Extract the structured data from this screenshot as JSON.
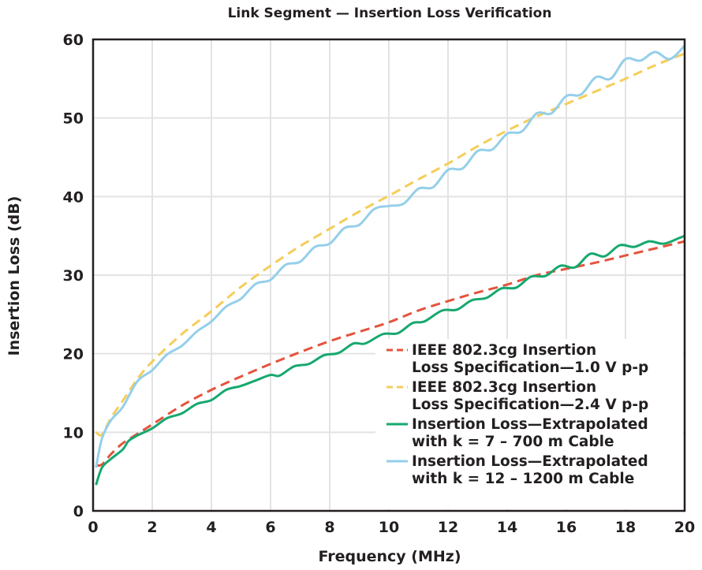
{
  "chart_data": {
    "type": "line",
    "title": "Link Segment — Insertion Loss Verification",
    "xlabel": "Frequency (MHz)",
    "ylabel": "Insertion Loss (dB)",
    "xlim": [
      0,
      20
    ],
    "ylim": [
      0,
      60
    ],
    "xticks": [
      0,
      2,
      4,
      6,
      8,
      10,
      12,
      14,
      16,
      18,
      20
    ],
    "yticks": [
      0,
      10,
      20,
      30,
      40,
      50,
      60
    ],
    "grid": true,
    "legend_position": "bottom-right",
    "series": [
      {
        "name": "IEEE 802.3cg Insertion Loss Specification—1.0 V p-p",
        "name_lines": [
          "IEEE 802.3cg Insertion",
          "Loss Specification—1.0 V p-p"
        ],
        "color": "#e5533d",
        "style": "dashed",
        "x": [
          0.1,
          0.3,
          0.6,
          1,
          1.5,
          2,
          3,
          4,
          5,
          6,
          7,
          8,
          9,
          10,
          11,
          12,
          13,
          14,
          15,
          16,
          17,
          18,
          19,
          20
        ],
        "y": [
          5.8,
          5.9,
          7.2,
          8.6,
          9.8,
          11,
          13.4,
          15.4,
          17.1,
          18.7,
          20.2,
          21.6,
          22.8,
          24,
          25.5,
          26.7,
          27.8,
          28.8,
          30,
          30.8,
          31.6,
          32.5,
          33.4,
          34.3
        ]
      },
      {
        "name": "IEEE 802.3cg Insertion Loss Specification—2.4 V p-p",
        "name_lines": [
          "IEEE 802.3cg Insertion",
          "Loss Specification—2.4 V p-p"
        ],
        "color": "#f5cd5a",
        "style": "dashed",
        "x": [
          0.1,
          0.3,
          0.6,
          1,
          1.5,
          2,
          3,
          4,
          5,
          6,
          7,
          8,
          9,
          10,
          11,
          12,
          13,
          14,
          15,
          16,
          17,
          18,
          19,
          20
        ],
        "y": [
          10,
          9.7,
          11.8,
          14,
          16.8,
          19,
          22.5,
          25.4,
          28.5,
          31.2,
          33.7,
          35.9,
          38.1,
          40.1,
          42.2,
          44.2,
          46.4,
          48.4,
          50.2,
          51.8,
          53.4,
          55,
          56.7,
          58.2
        ]
      },
      {
        "name": "Insertion Loss—Extrapolated with k = 7 – 700 m Cable",
        "name_lines": [
          "Insertion Loss—Extrapolated",
          "with k = 7 – 700 m Cable"
        ],
        "color": "#16a86e",
        "style": "solid",
        "x": [
          0.1,
          0.3,
          0.6,
          1,
          1.2,
          1.5,
          2,
          2.5,
          3,
          3.5,
          4,
          4.5,
          5,
          5.5,
          6,
          6.3,
          6.8,
          7.3,
          7.8,
          8.3,
          8.8,
          9.2,
          9.8,
          10.3,
          10.8,
          11.2,
          11.8,
          12.3,
          12.8,
          13.3,
          13.8,
          14.3,
          14.8,
          15.3,
          15.8,
          16.3,
          16.8,
          17.3,
          17.8,
          18.3,
          18.8,
          19.3,
          19.8,
          20
        ],
        "y": [
          3.3,
          5.5,
          6.6,
          7.8,
          8.9,
          9.6,
          10.5,
          11.8,
          12.4,
          13.6,
          14.1,
          15.4,
          15.9,
          16.6,
          17.3,
          17.2,
          18.4,
          18.7,
          19.8,
          20.1,
          21.3,
          21.3,
          22.5,
          22.6,
          23.9,
          24.1,
          25.5,
          25.6,
          26.8,
          27.1,
          28.3,
          28.4,
          29.8,
          29.9,
          31.2,
          31.0,
          32.7,
          32.4,
          33.8,
          33.6,
          34.3,
          34.0,
          34.7,
          35.0
        ]
      },
      {
        "name": "Insertion Loss—Extrapolated with k = 12 – 1200 m Cable",
        "name_lines": [
          "Insertion Loss—Extrapolated",
          "with k = 12 – 1200 m Cable"
        ],
        "color": "#95cfe9",
        "style": "solid",
        "x": [
          0.1,
          0.3,
          0.6,
          1,
          1.5,
          2,
          2.5,
          3,
          3.5,
          4,
          4.5,
          5,
          5.5,
          6,
          6.5,
          7,
          7.5,
          8,
          8.5,
          9,
          9.5,
          10,
          10.5,
          11,
          11.5,
          12,
          12.5,
          13,
          13.5,
          14,
          14.5,
          15,
          15.5,
          16,
          16.5,
          17,
          17.5,
          18,
          18.5,
          19,
          19.5,
          20
        ],
        "y": [
          5.5,
          9.2,
          11.5,
          13.2,
          16.5,
          17.9,
          19.9,
          21.0,
          22.8,
          24.1,
          26.0,
          27.0,
          28.9,
          29.4,
          31.3,
          31.7,
          33.6,
          34.0,
          36.0,
          36.4,
          38.4,
          38.8,
          39.1,
          41.0,
          41.2,
          43.4,
          43.6,
          45.8,
          46.0,
          48.0,
          48.3,
          50.6,
          50.6,
          52.8,
          53.0,
          55.2,
          55.0,
          57.5,
          57.3,
          58.4,
          57.5,
          59.2
        ]
      }
    ]
  }
}
